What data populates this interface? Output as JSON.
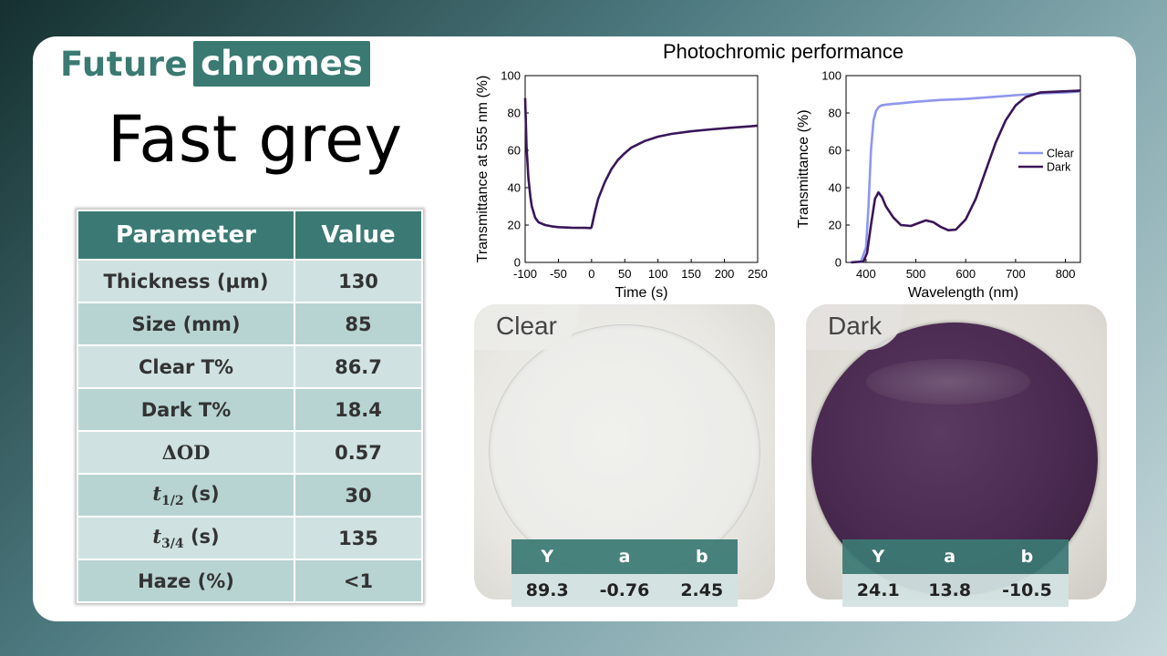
{
  "brand": {
    "word1": "Future",
    "word2": "chromes"
  },
  "product_title": "Fast grey",
  "parameters": {
    "header": [
      "Parameter",
      "Value"
    ],
    "rows": [
      {
        "label": "Thickness (µm)",
        "value": "130"
      },
      {
        "label": "Size (mm)",
        "value": "85"
      },
      {
        "label": "Clear T%",
        "value": "86.7"
      },
      {
        "label": "Dark T%",
        "value": "18.4"
      },
      {
        "label": "ΔOD",
        "value": "0.57"
      },
      {
        "label": "t",
        "sub": "1/2",
        "suffix": " (s)",
        "value": "30"
      },
      {
        "label": "t",
        "sub": "3/4",
        "suffix": " (s)",
        "value": "135"
      },
      {
        "label": "Haze (%)",
        "value": "<1"
      }
    ]
  },
  "charts_title": "Photochromic performance",
  "chart_data": [
    {
      "type": "line",
      "xlabel": "Time (s)",
      "ylabel": "Transmittance at 555 nm (%)",
      "xlim": [
        -100,
        250
      ],
      "ylim": [
        0,
        100
      ],
      "xticks": [
        -100,
        -50,
        0,
        50,
        100,
        150,
        200,
        250
      ],
      "yticks": [
        0,
        20,
        40,
        60,
        80,
        100
      ],
      "color": "#3a1659",
      "series": [
        {
          "x": [
            -100,
            -98,
            -95,
            -92,
            -90,
            -85,
            -80,
            -70,
            -60,
            -50,
            -30,
            -10,
            -1,
            0,
            5,
            10,
            20,
            30,
            40,
            50,
            60,
            80,
            100,
            120,
            150,
            180,
            210,
            240,
            250
          ],
          "y": [
            88,
            62,
            45,
            35,
            30,
            24,
            21.5,
            20,
            19.3,
            18.9,
            18.6,
            18.5,
            18.4,
            19,
            27,
            34,
            43,
            50,
            55,
            58.5,
            61.5,
            65,
            67.3,
            68.8,
            70.2,
            71.2,
            72.1,
            72.9,
            73.2
          ]
        }
      ]
    },
    {
      "type": "line",
      "xlabel": "Wavelength (nm)",
      "ylabel": "Transmittance (%)",
      "xlim": [
        360,
        830
      ],
      "ylim": [
        0,
        100
      ],
      "xticks": [
        400,
        500,
        600,
        700,
        800
      ],
      "yticks": [
        0,
        20,
        40,
        60,
        80,
        100
      ],
      "legend": "right",
      "series": [
        {
          "name": "Clear",
          "color": "#8f96ee",
          "x": [
            370,
            390,
            400,
            405,
            410,
            415,
            420,
            425,
            430,
            440,
            460,
            500,
            550,
            600,
            650,
            700,
            750,
            800,
            830
          ],
          "y": [
            0,
            0.5,
            8,
            30,
            60,
            76,
            81,
            83,
            84,
            84.5,
            85,
            86,
            87,
            87.5,
            88.5,
            89.5,
            90.5,
            91,
            91.5
          ]
        },
        {
          "name": "Dark",
          "color": "#3a1659",
          "x": [
            370,
            395,
            402,
            410,
            418,
            425,
            432,
            440,
            455,
            470,
            490,
            505,
            520,
            535,
            550,
            565,
            580,
            600,
            620,
            640,
            660,
            680,
            700,
            720,
            750,
            790,
            830
          ],
          "y": [
            0,
            0.5,
            5,
            20,
            34,
            37.5,
            35,
            30,
            24,
            20,
            19.5,
            21,
            22.5,
            21.5,
            19,
            17.2,
            17.5,
            23,
            34,
            49,
            64,
            76,
            84,
            88.5,
            91,
            91.5,
            92
          ]
        }
      ]
    }
  ],
  "photos": [
    {
      "label": "Clear",
      "headers": [
        "Y",
        "a",
        "b"
      ],
      "values": [
        "89.3",
        "-0.76",
        "2.45"
      ]
    },
    {
      "label": "Dark",
      "headers": [
        "Y",
        "a",
        "b"
      ],
      "values": [
        "24.1",
        "13.8",
        "-10.5"
      ]
    }
  ]
}
